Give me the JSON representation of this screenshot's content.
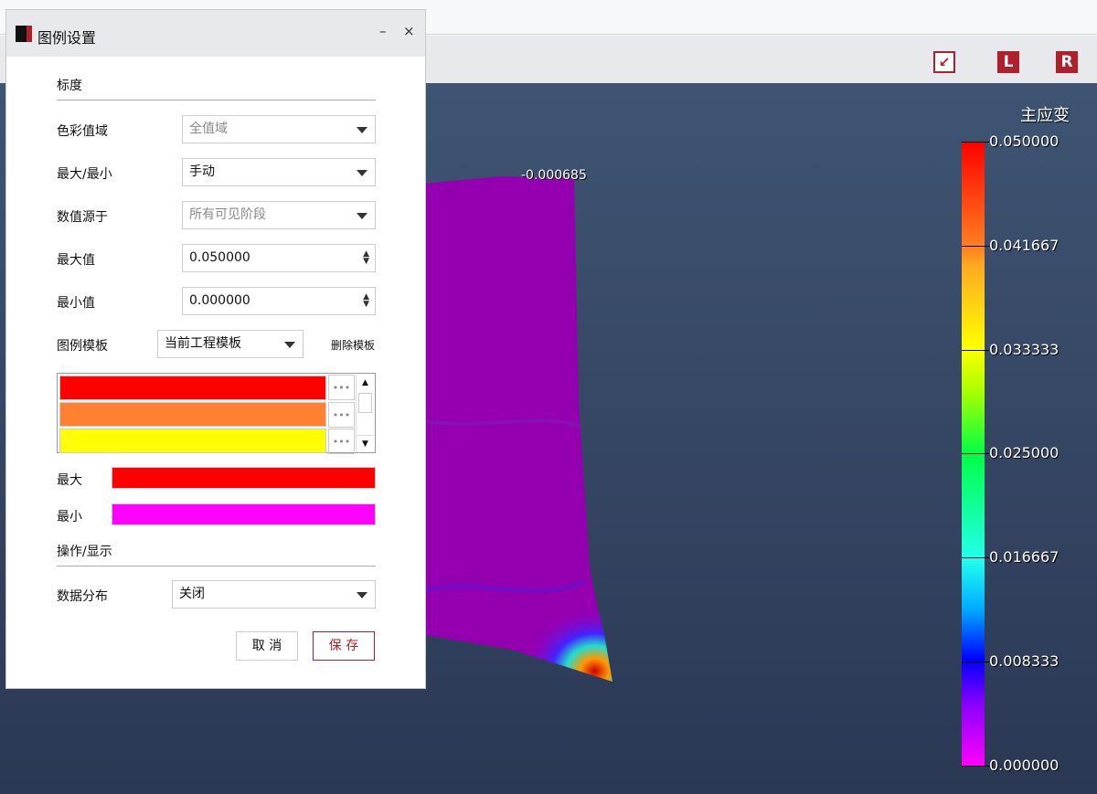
{
  "toolbar": {
    "buttons": [
      {
        "label": "",
        "icon": "arrow-down-left-icon"
      },
      {
        "label": "L"
      },
      {
        "label": "R"
      }
    ],
    "accent": "#b0202a"
  },
  "viewport": {
    "probe_value": "-0.000685",
    "legend": {
      "title": "主应变",
      "ticks": [
        "0.050000",
        "0.041667",
        "0.033333",
        "0.025000",
        "0.016667",
        "0.008333",
        "0.000000"
      ]
    }
  },
  "dialog": {
    "title": "图例设置",
    "minimize": "–",
    "close": "×",
    "section_scale": "标度",
    "color_range": {
      "label": "色彩值域",
      "value": "全值域"
    },
    "max_min": {
      "label": "最大/最小",
      "value": "手动"
    },
    "source": {
      "label": "数值源于",
      "value": "所有可见阶段"
    },
    "max_value": {
      "label": "最大值",
      "value": "0.050000"
    },
    "min_value": {
      "label": "最小值",
      "value": "0.000000"
    },
    "template": {
      "label": "图例模板",
      "value": "当前工程模板",
      "delete": "删除模板"
    },
    "colors": [
      {
        "color": "#ff0000",
        "more": "•••"
      },
      {
        "color": "#ff8030",
        "more": "•••"
      },
      {
        "color": "#ffff00",
        "more": "•••"
      }
    ],
    "max_color": {
      "label": "最大",
      "color": "#ff0000"
    },
    "min_color": {
      "label": "最小",
      "color": "#ff00ff"
    },
    "section_ops": "操作/显示",
    "distribution": {
      "label": "数据分布",
      "value": "关闭"
    },
    "cancel": "取 消",
    "save": "保 存"
  }
}
